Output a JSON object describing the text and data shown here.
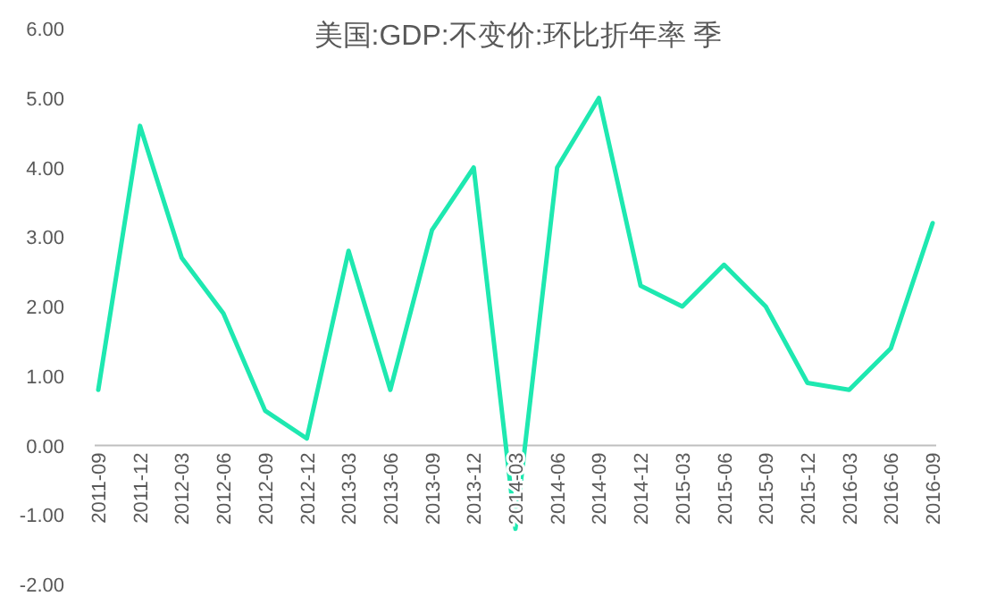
{
  "chart_data": {
    "type": "line",
    "title": "美国:GDP:不变价:环比折年率 季",
    "categories": [
      "2011-09",
      "2011-12",
      "2012-03",
      "2012-06",
      "2012-09",
      "2012-12",
      "2013-03",
      "2013-06",
      "2013-09",
      "2013-12",
      "2014-03",
      "2014-06",
      "2014-09",
      "2014-12",
      "2015-03",
      "2015-06",
      "2015-09",
      "2015-12",
      "2016-03",
      "2016-06",
      "2016-09"
    ],
    "series": [
      {
        "color": "#1ee8b0",
        "values": [
          0.8,
          4.6,
          2.7,
          1.9,
          0.5,
          0.1,
          2.8,
          0.8,
          3.1,
          4.0,
          -1.2,
          4.0,
          5.0,
          2.3,
          2.0,
          2.6,
          2.0,
          0.9,
          0.8,
          1.4,
          3.2
        ]
      }
    ],
    "ylim": [
      -2,
      6
    ],
    "yticks": [
      {
        "value": -2,
        "label": "-2.00"
      },
      {
        "value": -1,
        "label": "-1.00"
      },
      {
        "value": 0,
        "label": "0.00"
      },
      {
        "value": 1,
        "label": "1.00"
      },
      {
        "value": 2,
        "label": "2.00"
      },
      {
        "value": 3,
        "label": "3.00"
      },
      {
        "value": 4,
        "label": "4.00"
      },
      {
        "value": 5,
        "label": "5.00"
      },
      {
        "value": 6,
        "label": "6.00"
      }
    ],
    "line_style": "solid"
  }
}
